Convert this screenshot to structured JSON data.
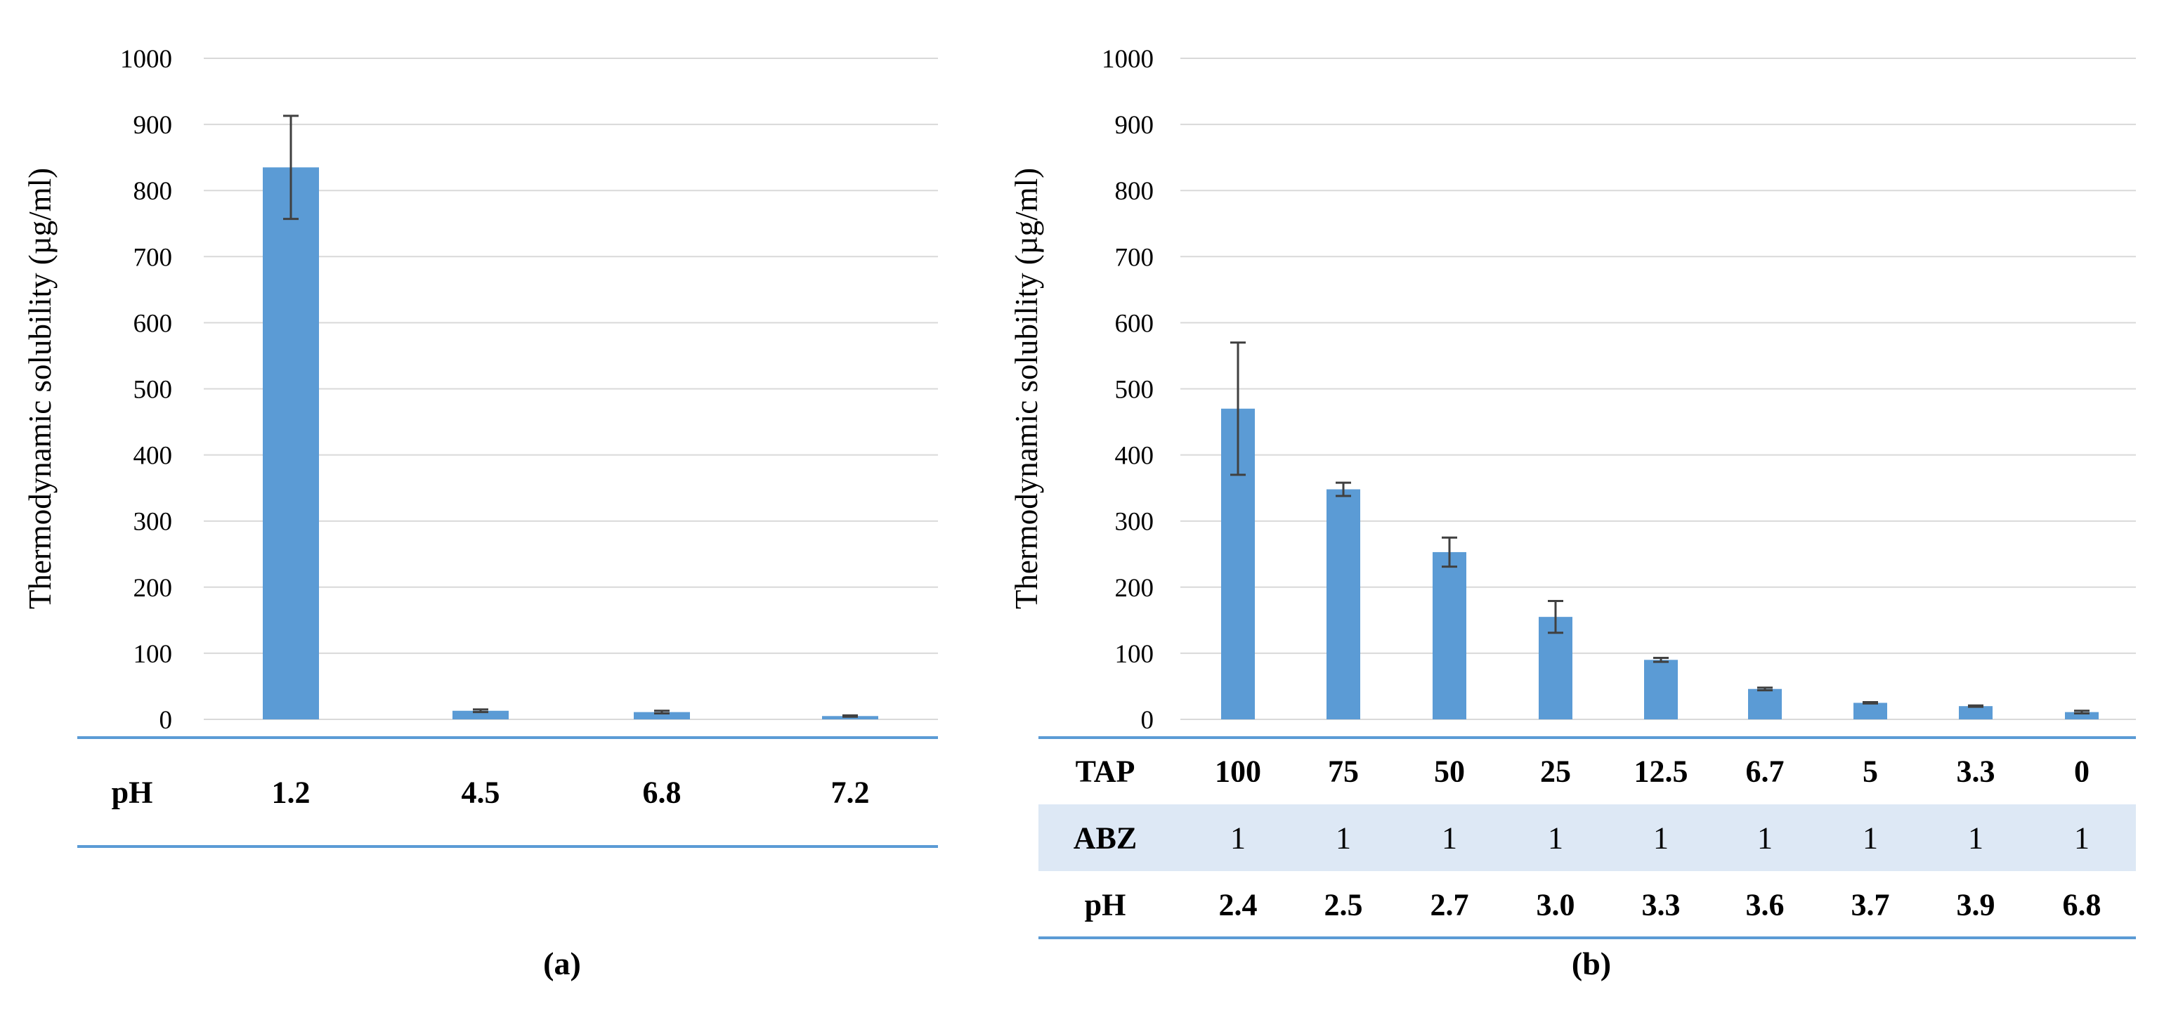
{
  "chart_data": [
    {
      "type": "bar",
      "panel_label": "(a)",
      "ylabel": "Thermodynamic solubility  (µg/ml)",
      "ylim": [
        0,
        1000
      ],
      "yticks": [
        0,
        100,
        200,
        300,
        400,
        500,
        600,
        700,
        800,
        900,
        1000
      ],
      "grid": true,
      "table": [
        {
          "label": "pH",
          "values": [
            "1.2",
            "4.5",
            "6.8",
            "7.2"
          ],
          "bold": true,
          "shaded": false
        }
      ],
      "values": [
        835,
        13,
        11,
        5
      ],
      "errors": [
        78,
        2,
        2,
        1
      ]
    },
    {
      "type": "bar",
      "panel_label": "(b)",
      "ylabel": "Thermodynamic solubility  (µg/ml)",
      "ylim": [
        0,
        1000
      ],
      "yticks": [
        0,
        100,
        200,
        300,
        400,
        500,
        600,
        700,
        800,
        900,
        1000
      ],
      "grid": true,
      "table": [
        {
          "label": "TAP",
          "values": [
            "100",
            "75",
            "50",
            "25",
            "12.5",
            "6.7",
            "5",
            "3.3",
            "0"
          ],
          "bold": true,
          "shaded": false
        },
        {
          "label": "ABZ",
          "values": [
            "1",
            "1",
            "1",
            "1",
            "1",
            "1",
            "1",
            "1",
            "1"
          ],
          "bold": false,
          "shaded": true
        },
        {
          "label": "pH",
          "values": [
            "2.4",
            "2.5",
            "2.7",
            "3.0",
            "3.3",
            "3.6",
            "3.7",
            "3.9",
            "6.8"
          ],
          "bold": true,
          "shaded": false
        }
      ],
      "values": [
        470,
        348,
        253,
        155,
        90,
        46,
        25,
        20,
        11
      ],
      "errors": [
        100,
        10,
        22,
        24,
        3,
        2,
        1,
        1,
        2
      ]
    }
  ],
  "colors": {
    "bar": "#5b9bd5",
    "grid": "#d9d9d9",
    "error_bar": "#404040",
    "table_line": "#5b9bd5",
    "table_shade": "#dde8f5"
  }
}
